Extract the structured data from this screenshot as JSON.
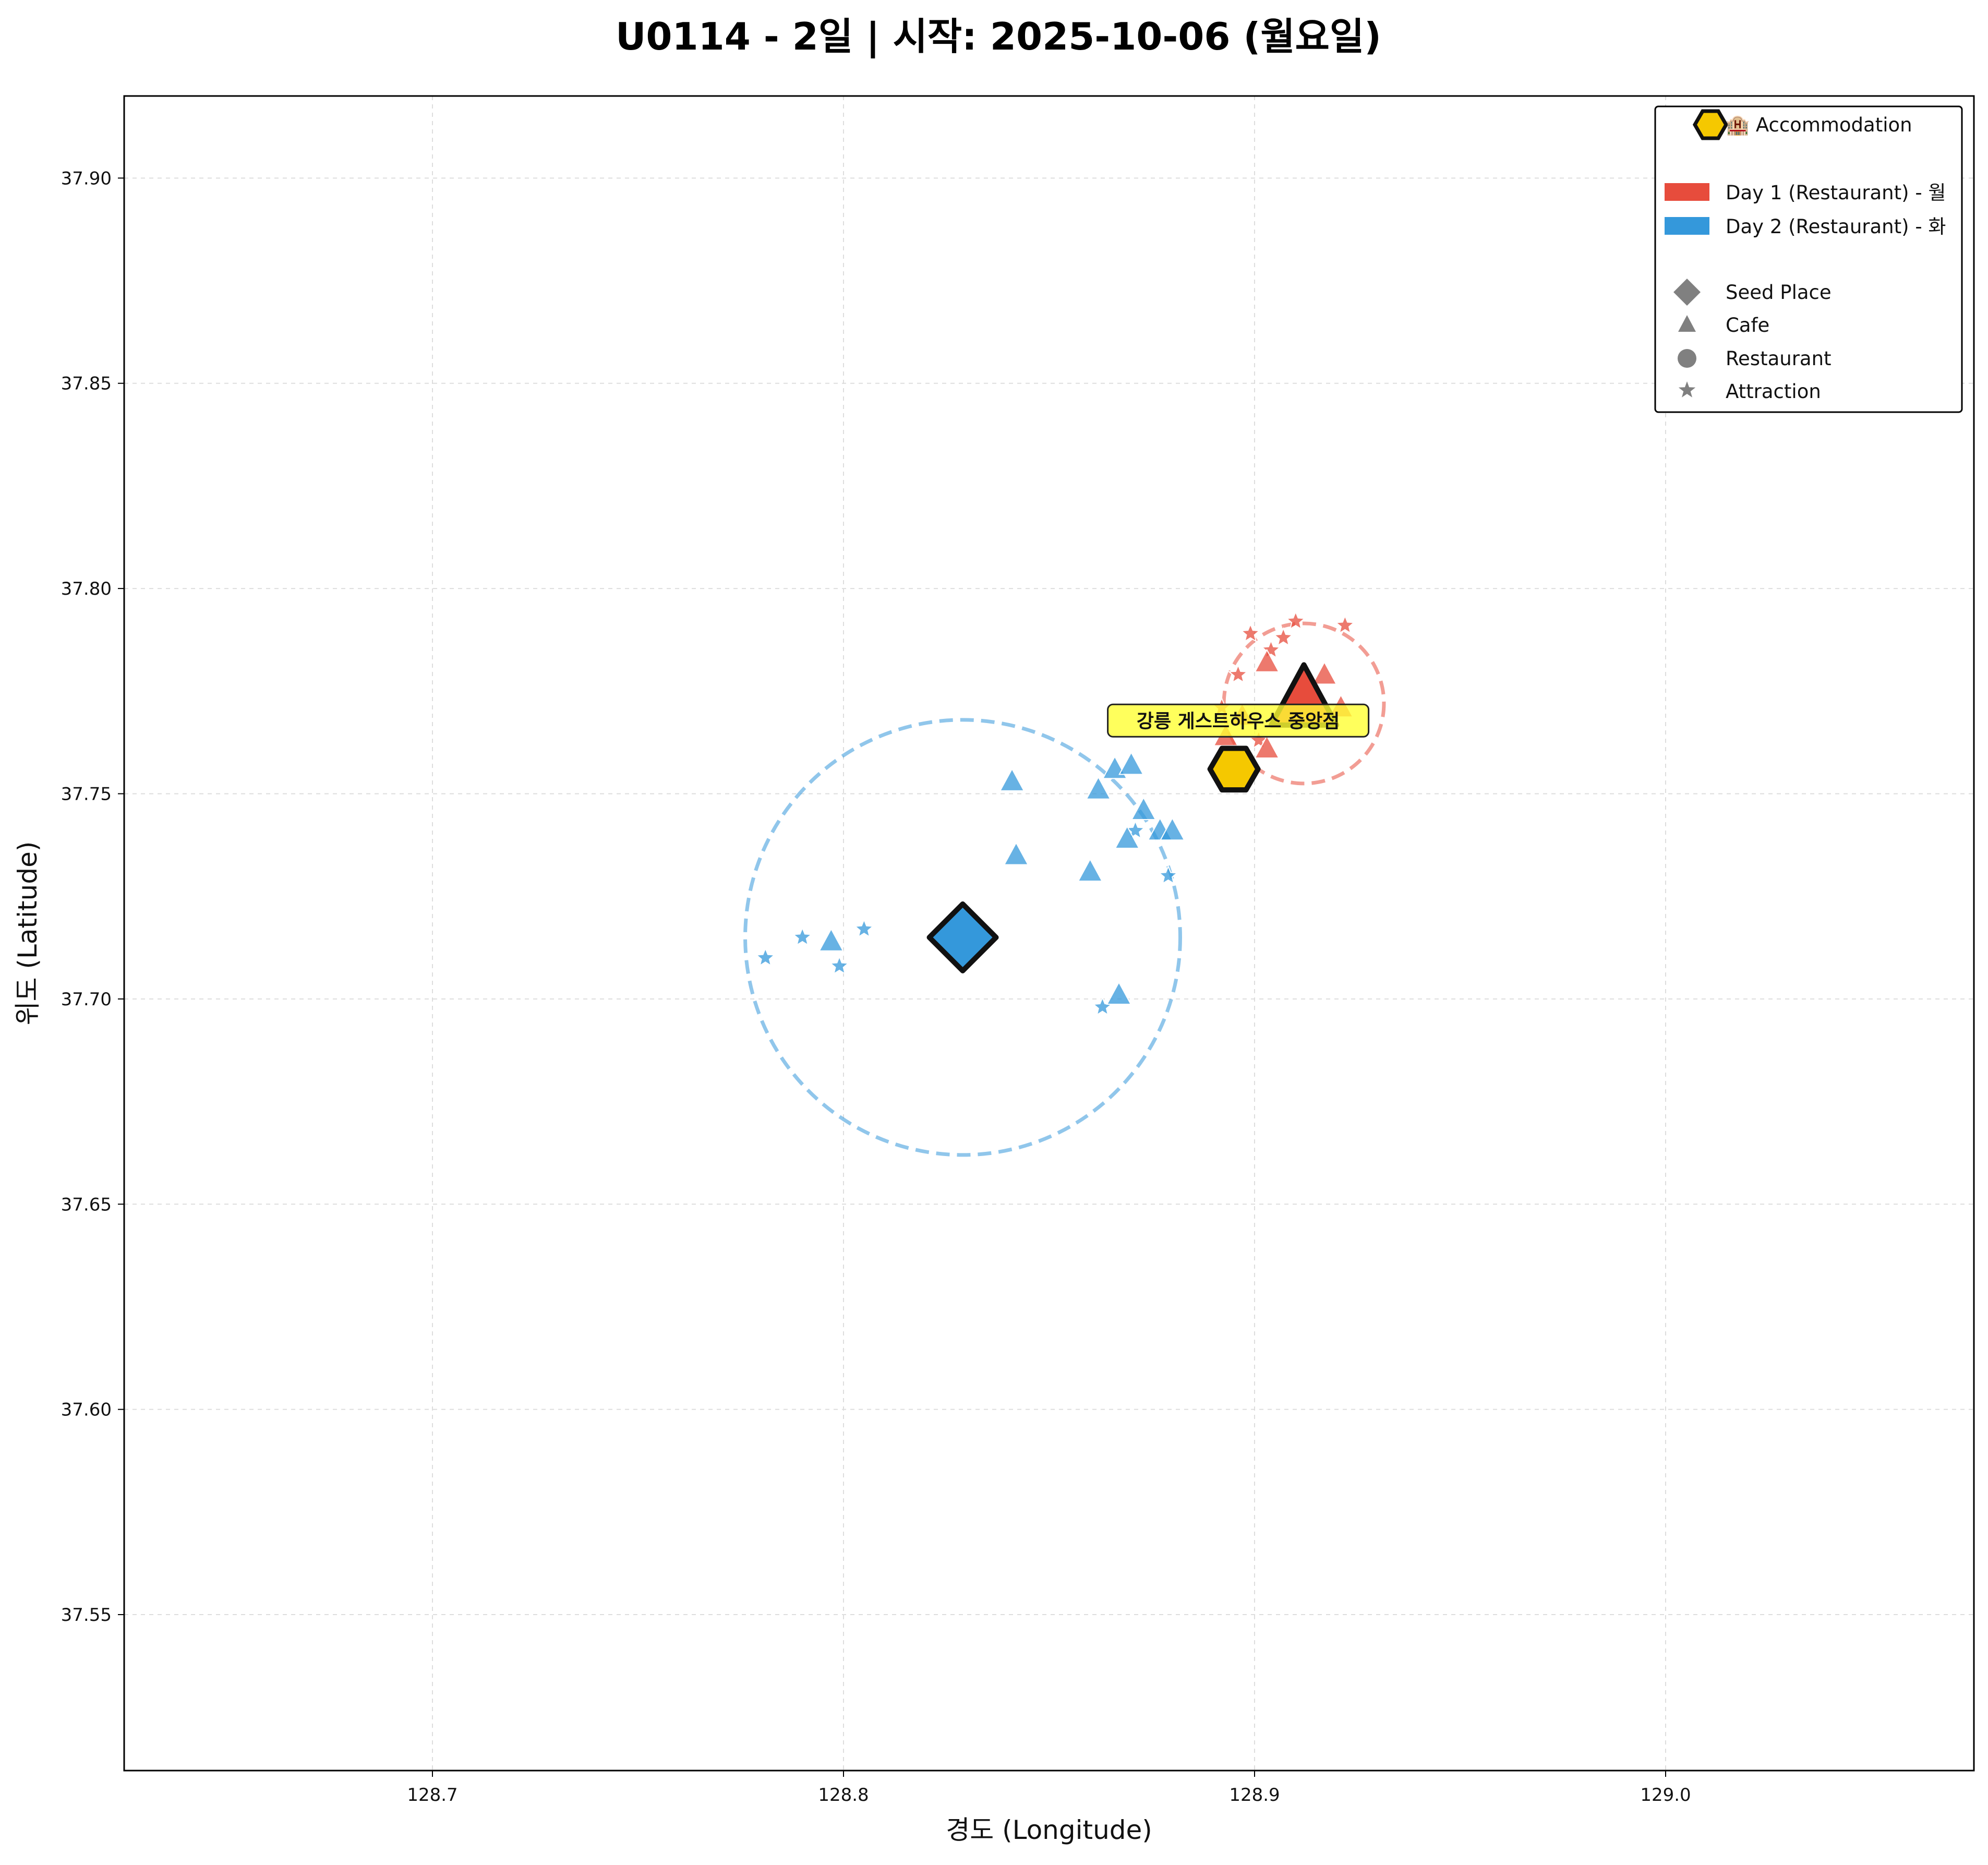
{
  "chart_data": {
    "type": "scatter",
    "title": "U0114 - 2일 | 시작: 2025-10-06 (월요일)",
    "xlabel": "경도 (Longitude)",
    "ylabel": "위도 (Latitude)",
    "xlim": [
      128.625,
      129.075
    ],
    "ylim": [
      37.512,
      37.92
    ],
    "xticks": [
      "128.7",
      "128.8",
      "128.9",
      "129.0"
    ],
    "yticks": [
      "37.55",
      "37.60",
      "37.65",
      "37.70",
      "37.75",
      "37.80",
      "37.85",
      "37.90"
    ],
    "grid": true,
    "legend_position": "top-right",
    "colors": {
      "day1": "#e74c3c",
      "day2": "#3498db",
      "accommodation": "#f5c800",
      "neutral": "#808080",
      "annotation_bg": "#ffff33"
    },
    "legend": {
      "accommodation": "🏨 Accommodation",
      "day1": "Day 1 (Restaurant) - 월",
      "day2": "Day 2 (Restaurant) - 화",
      "seed": "Seed Place",
      "cafe": "Cafe",
      "restaurant": "Restaurant",
      "attraction": "Attraction"
    },
    "accommodation": {
      "name": "강릉 게스트하우스 중앙점",
      "lon": 128.895,
      "lat": 37.756
    },
    "series": [
      {
        "name": "Day 1 (Restaurant) - 월",
        "color": "#e74c3c",
        "radius_circle": {
          "center": [
            128.912,
            37.772
          ],
          "lat_radius": 0.0195
        },
        "seed": {
          "lon": 128.912,
          "lat": 37.772
        },
        "cafes": [
          [
            128.903,
            37.782
          ],
          [
            128.917,
            37.779
          ],
          [
            128.921,
            37.771
          ],
          [
            128.897,
            37.769
          ],
          [
            128.893,
            37.764
          ],
          [
            128.903,
            37.761
          ]
        ],
        "attractions": [
          [
            128.899,
            37.789
          ],
          [
            128.91,
            37.792
          ],
          [
            128.922,
            37.791
          ],
          [
            128.904,
            37.785
          ],
          [
            128.896,
            37.779
          ],
          [
            128.907,
            37.788
          ],
          [
            128.892,
            37.771
          ],
          [
            128.901,
            37.763
          ],
          [
            128.918,
            37.769
          ],
          [
            128.913,
            37.77
          ]
        ]
      },
      {
        "name": "Day 2 (Restaurant) - 화",
        "color": "#3498db",
        "radius_circle": {
          "center": [
            128.829,
            37.715
          ],
          "lat_radius": 0.053
        },
        "seed": {
          "lon": 128.829,
          "lat": 37.715
        },
        "cafes": [
          [
            128.841,
            37.753
          ],
          [
            128.862,
            37.751
          ],
          [
            128.866,
            37.756
          ],
          [
            128.87,
            37.757
          ],
          [
            128.873,
            37.746
          ],
          [
            128.877,
            37.741
          ],
          [
            128.88,
            37.741
          ],
          [
            128.842,
            37.735
          ],
          [
            128.86,
            37.731
          ],
          [
            128.869,
            37.739
          ],
          [
            128.797,
            37.714
          ],
          [
            128.867,
            37.701
          ]
        ],
        "attractions": [
          [
            128.781,
            37.71
          ],
          [
            128.79,
            37.715
          ],
          [
            128.799,
            37.708
          ],
          [
            128.805,
            37.717
          ],
          [
            128.871,
            37.741
          ],
          [
            128.879,
            37.73
          ],
          [
            128.863,
            37.698
          ]
        ]
      }
    ]
  }
}
